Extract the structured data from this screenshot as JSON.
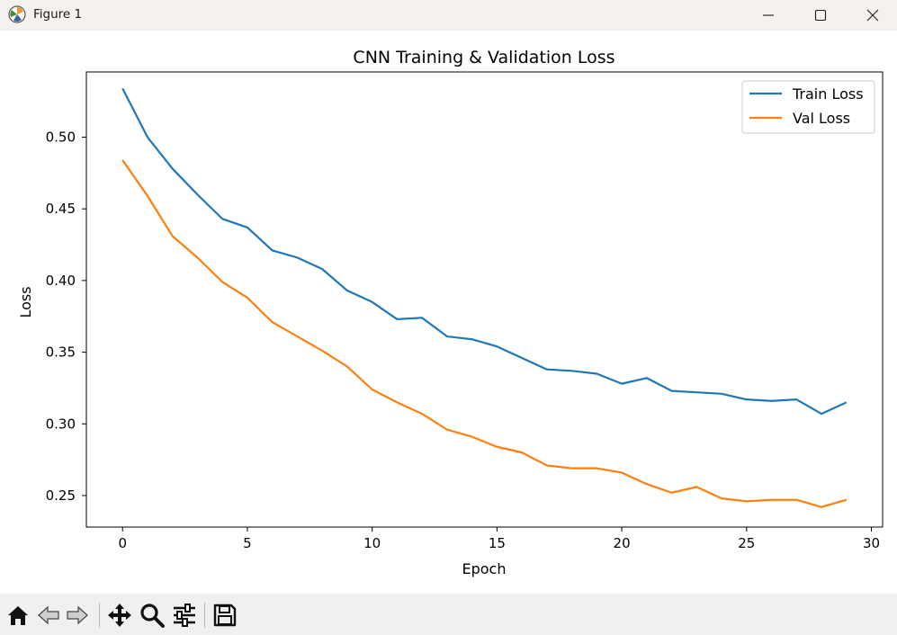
{
  "window": {
    "title": "Figure 1"
  },
  "colors": {
    "train": "#1f77b4",
    "val": "#ff7f0e"
  },
  "toolbar": {
    "icons": [
      "home-icon",
      "back-arrow-icon",
      "forward-arrow-icon",
      "pan-move-icon",
      "zoom-magnifier-icon",
      "configure-subplots-icon",
      "save-floppy-icon"
    ]
  },
  "chart_data": {
    "type": "line",
    "title": "CNN Training & Validation Loss",
    "xlabel": "Epoch",
    "ylabel": "Loss",
    "xlim": [
      -1.45,
      30.45
    ],
    "ylim": [
      0.228,
      0.5455
    ],
    "xticks": [
      0,
      5,
      10,
      15,
      20,
      25,
      30
    ],
    "xtick_labels": [
      "0",
      "5",
      "10",
      "15",
      "20",
      "25",
      "30"
    ],
    "yticks": [
      0.25,
      0.3,
      0.35,
      0.4,
      0.45,
      0.5
    ],
    "ytick_labels": [
      "0.25",
      "0.30",
      "0.35",
      "0.40",
      "0.45",
      "0.50"
    ],
    "legend_position": "top-right",
    "x": [
      0,
      1,
      2,
      3,
      4,
      5,
      6,
      7,
      8,
      9,
      10,
      11,
      12,
      13,
      14,
      15,
      16,
      17,
      18,
      19,
      20,
      21,
      22,
      23,
      24,
      25,
      26,
      27,
      28,
      29
    ],
    "series": [
      {
        "name": "Train Loss",
        "color": "#1f77b4",
        "values": [
          0.534,
          0.5,
          0.478,
          0.46,
          0.443,
          0.437,
          0.421,
          0.416,
          0.408,
          0.393,
          0.385,
          0.373,
          0.374,
          0.361,
          0.359,
          0.354,
          0.346,
          0.338,
          0.337,
          0.335,
          0.328,
          0.332,
          0.323,
          0.322,
          0.321,
          0.317,
          0.316,
          0.317,
          0.307,
          0.315
        ]
      },
      {
        "name": "Val Loss",
        "color": "#ff7f0e",
        "values": [
          0.484,
          0.459,
          0.431,
          0.416,
          0.399,
          0.388,
          0.371,
          0.361,
          0.351,
          0.34,
          0.324,
          0.315,
          0.307,
          0.296,
          0.291,
          0.284,
          0.28,
          0.271,
          0.269,
          0.269,
          0.266,
          0.258,
          0.252,
          0.256,
          0.248,
          0.246,
          0.247,
          0.247,
          0.242,
          0.247
        ]
      }
    ]
  }
}
